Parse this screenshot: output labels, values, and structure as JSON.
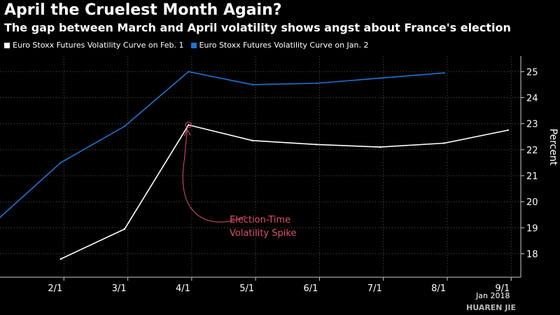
{
  "colors": {
    "background": "#000000",
    "series_feb": "#ffffff",
    "series_jan": "#1f73d2",
    "annotation": "#e0506a"
  },
  "chart_data": {
    "type": "line",
    "title": "April the Cruelest Month Again?",
    "subtitle": "The gap between March and April volatility shows angst about France's election",
    "ylabel": "Percent",
    "ylim": [
      17.1,
      25.6
    ],
    "y_ticks": [
      18,
      19,
      20,
      21,
      22,
      23,
      24,
      25
    ],
    "x_ticks": [
      "2/1",
      "3/1",
      "4/1",
      "5/1",
      "6/1",
      "7/1",
      "8/1",
      "9/1"
    ],
    "xlim": [
      0,
      8.15
    ],
    "grid": true,
    "legend_position": "top-left",
    "series": [
      {
        "name": "Euro Stoxx Futures Volatility Curve on Feb. 1",
        "color": "#ffffff",
        "points": [
          {
            "x": 0.95,
            "y": 17.8
          },
          {
            "x": 1.95,
            "y": 18.95
          },
          {
            "x": 2.95,
            "y": 22.95
          },
          {
            "x": 3.95,
            "y": 22.35
          },
          {
            "x": 4.95,
            "y": 22.2
          },
          {
            "x": 5.95,
            "y": 22.1
          },
          {
            "x": 6.95,
            "y": 22.25
          },
          {
            "x": 7.95,
            "y": 22.75
          }
        ]
      },
      {
        "name": "Euro Stoxx Futures Volatility Curve on Jan. 2",
        "color": "#1f73d2",
        "points": [
          {
            "x": 0.0,
            "y": 19.4
          },
          {
            "x": 0.95,
            "y": 21.5
          },
          {
            "x": 1.95,
            "y": 22.9
          },
          {
            "x": 2.95,
            "y": 25.0
          },
          {
            "x": 3.95,
            "y": 24.5
          },
          {
            "x": 4.95,
            "y": 24.55
          },
          {
            "x": 5.95,
            "y": 24.75
          },
          {
            "x": 6.95,
            "y": 24.95
          }
        ]
      }
    ],
    "annotation": {
      "lines": [
        "Election-Time",
        "Volatility Spike"
      ],
      "target": {
        "x": 2.95,
        "y": 22.95
      }
    }
  },
  "footer": {
    "date_label": "Jan 2018",
    "watermark": "HUAREN JIE"
  }
}
